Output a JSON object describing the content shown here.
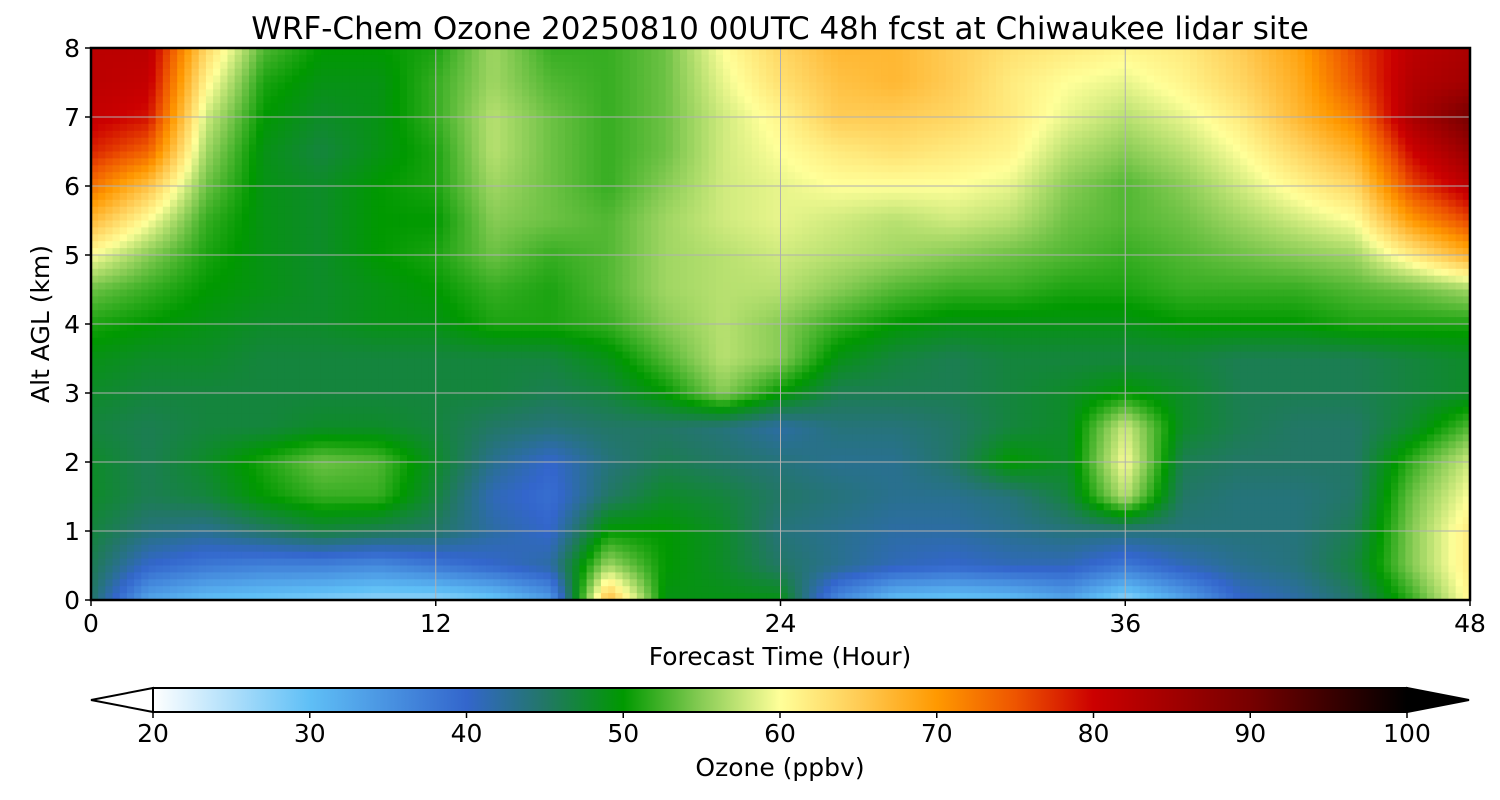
{
  "chart_data": {
    "type": "heatmap",
    "title": "WRF-Chem Ozone  20250810 00UTC 48h fcst at Chiwaukee lidar site",
    "xlabel": "Forecast Time (Hour)",
    "ylabel": "Alt AGL (km)",
    "xlim": [
      0,
      48
    ],
    "ylim": [
      0,
      8
    ],
    "xticks": [
      0,
      12,
      24,
      36,
      48
    ],
    "yticks": [
      0,
      1,
      2,
      3,
      4,
      5,
      6,
      7,
      8
    ],
    "grid": true,
    "colorbar": {
      "label": "Ozone  (ppbv)",
      "range": [
        20,
        100
      ],
      "ticks": [
        20,
        30,
        40,
        50,
        60,
        70,
        80,
        90,
        100
      ],
      "extend": "both",
      "stops": [
        {
          "v": 20,
          "c": "#ffffff"
        },
        {
          "v": 30,
          "c": "#5fbff6"
        },
        {
          "v": 40,
          "c": "#3366cc"
        },
        {
          "v": 45,
          "c": "#227766"
        },
        {
          "v": 50,
          "c": "#009900"
        },
        {
          "v": 55,
          "c": "#88cc55"
        },
        {
          "v": 60,
          "c": "#ffff99"
        },
        {
          "v": 65,
          "c": "#ffcc55"
        },
        {
          "v": 70,
          "c": "#ff9900"
        },
        {
          "v": 75,
          "c": "#ee5500"
        },
        {
          "v": 80,
          "c": "#cc0000"
        },
        {
          "v": 90,
          "c": "#770000"
        },
        {
          "v": 100,
          "c": "#000000"
        }
      ]
    },
    "x": [
      0,
      2,
      4,
      6,
      8,
      10,
      12,
      14,
      16,
      18,
      20,
      22,
      24,
      26,
      28,
      30,
      32,
      34,
      36,
      38,
      40,
      42,
      44,
      46,
      48
    ],
    "y": [
      0,
      0.5,
      1,
      1.5,
      2,
      2.5,
      3,
      3.5,
      4,
      4.5,
      5,
      5.5,
      6,
      6.5,
      7,
      7.5,
      8
    ],
    "z": [
      [
        45,
        33,
        30,
        29,
        28,
        27,
        27,
        29,
        34,
        67,
        49,
        49,
        49,
        36,
        30,
        29,
        30,
        33,
        27,
        33,
        40,
        42,
        45,
        52,
        61
      ],
      [
        46,
        40,
        38,
        37,
        37,
        36,
        38,
        40,
        42,
        56,
        50,
        48,
        45,
        43,
        41,
        40,
        41,
        41,
        38,
        41,
        43,
        44,
        47,
        55,
        62
      ],
      [
        47,
        44,
        43,
        45,
        47,
        46,
        45,
        42,
        40,
        50,
        50,
        48,
        44,
        43,
        42,
        42,
        43,
        44,
        44,
        44,
        44,
        44,
        46,
        55,
        62
      ],
      [
        48,
        46,
        47,
        50,
        52,
        52,
        47,
        41,
        39,
        45,
        48,
        47,
        45,
        44,
        43,
        43,
        44,
        47,
        57,
        45,
        44,
        44,
        45,
        54,
        60
      ],
      [
        48,
        46,
        48,
        51,
        54,
        53,
        48,
        43,
        40,
        44,
        46,
        45,
        44,
        43,
        43,
        45,
        50,
        48,
        60,
        46,
        45,
        45,
        45,
        52,
        58
      ],
      [
        47,
        46,
        47,
        47,
        48,
        48,
        47,
        45,
        44,
        45,
        45,
        44,
        42,
        44,
        44,
        45,
        47,
        48,
        58,
        48,
        46,
        45,
        45,
        48,
        53
      ],
      [
        48,
        47,
        47,
        47,
        47,
        47,
        47,
        47,
        46,
        47,
        50,
        55,
        50,
        46,
        46,
        46,
        47,
        48,
        50,
        48,
        46,
        46,
        46,
        47,
        48
      ],
      [
        49,
        48,
        48,
        47,
        47,
        47,
        47,
        47,
        47,
        49,
        53,
        57,
        55,
        49,
        47,
        46,
        47,
        47,
        47,
        47,
        46,
        46,
        46,
        47,
        48
      ],
      [
        51,
        50,
        49,
        48,
        48,
        49,
        49,
        51,
        51,
        52,
        55,
        57,
        55,
        52,
        50,
        49,
        49,
        49,
        49,
        50,
        50,
        50,
        51,
        51,
        51
      ],
      [
        54,
        52,
        50,
        49,
        48,
        49,
        50,
        52,
        51,
        53,
        56,
        57,
        57,
        55,
        53,
        52,
        52,
        51,
        51,
        52,
        52,
        52,
        53,
        54,
        56
      ],
      [
        60,
        55,
        51,
        49,
        48,
        50,
        51,
        54,
        52,
        53,
        56,
        57,
        58,
        57,
        56,
        55,
        54,
        53,
        52,
        53,
        54,
        55,
        56,
        62,
        68
      ],
      [
        67,
        60,
        52,
        49,
        48,
        50,
        50,
        55,
        54,
        53,
        56,
        58,
        59,
        58,
        57,
        58,
        57,
        54,
        53,
        54,
        56,
        58,
        60,
        70,
        76
      ],
      [
        73,
        66,
        54,
        49,
        48,
        50,
        51,
        56,
        54,
        52,
        55,
        58,
        59,
        60,
        60,
        60,
        59,
        55,
        53,
        55,
        58,
        61,
        64,
        76,
        82
      ],
      [
        78,
        74,
        56,
        49,
        47,
        49,
        51,
        57,
        54,
        52,
        54,
        58,
        60,
        62,
        63,
        62,
        61,
        57,
        55,
        57,
        60,
        64,
        68,
        80,
        86
      ],
      [
        81,
        79,
        58,
        50,
        48,
        49,
        52,
        57,
        54,
        52,
        54,
        58,
        61,
        65,
        65,
        64,
        62,
        59,
        57,
        59,
        62,
        67,
        72,
        84,
        90
      ],
      [
        82,
        81,
        61,
        51,
        49,
        49,
        52,
        56,
        53,
        52,
        54,
        59,
        63,
        66,
        67,
        65,
        62,
        60,
        59,
        61,
        64,
        68,
        75,
        83,
        85
      ],
      [
        82,
        82,
        64,
        53,
        50,
        50,
        51,
        56,
        52,
        52,
        54,
        60,
        64,
        67,
        67,
        65,
        63,
        62,
        61,
        62,
        65,
        69,
        76,
        82,
        84
      ]
    ]
  }
}
